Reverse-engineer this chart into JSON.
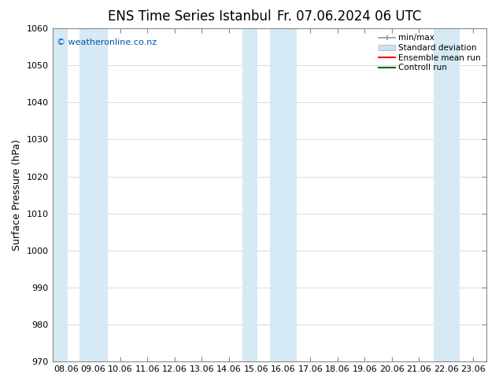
{
  "title_left": "ENS Time Series Istanbul",
  "title_right": "Fr. 07.06.2024 06 UTC",
  "ylabel": "Surface Pressure (hPa)",
  "ylim": [
    970,
    1060
  ],
  "yticks": [
    970,
    980,
    990,
    1000,
    1010,
    1020,
    1030,
    1040,
    1050,
    1060
  ],
  "x_labels": [
    "08.06",
    "09.06",
    "10.06",
    "11.06",
    "12.06",
    "13.06",
    "14.06",
    "15.06",
    "16.06",
    "17.06",
    "18.06",
    "19.06",
    "20.06",
    "21.06",
    "22.06",
    "23.06"
  ],
  "xlim_min": 0,
  "xlim_max": 15,
  "shaded_bands": [
    {
      "x_start": 0.0,
      "x_end": 0.55
    },
    {
      "x_start": 1.0,
      "x_end": 2.05
    },
    {
      "x_start": 7.0,
      "x_end": 7.55
    },
    {
      "x_start": 8.0,
      "x_end": 9.0
    },
    {
      "x_start": 14.05,
      "x_end": 15.0
    }
  ],
  "band_color": "#d6eaf5",
  "watermark": "© weatheronline.co.nz",
  "watermark_color": "#0055aa",
  "background_color": "#ffffff",
  "plot_bg_color": "#ffffff",
  "legend_labels": [
    "min/max",
    "Standard deviation",
    "Ensemble mean run",
    "Controll run"
  ],
  "grid_color": "#cccccc",
  "spine_color": "#888888",
  "font_color": "#000000",
  "title_fontsize": 12,
  "axis_fontsize": 8,
  "ylabel_fontsize": 9
}
